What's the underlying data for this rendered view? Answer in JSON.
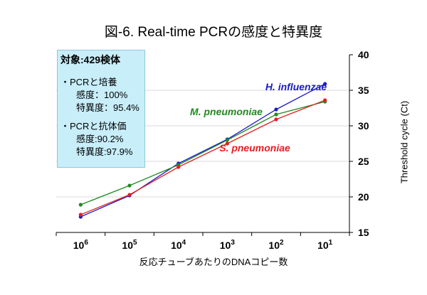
{
  "chart_data": {
    "type": "line",
    "title": "図-6. Real-time PCRの感度と特異度",
    "xlabel": "反応チューブあたりのDNAコピー数",
    "ylabel": "Threshold cycle (Ct)",
    "categories": [
      {
        "base": "10",
        "exp": "6"
      },
      {
        "base": "10",
        "exp": "5"
      },
      {
        "base": "10",
        "exp": "4"
      },
      {
        "base": "10",
        "exp": "3"
      },
      {
        "base": "10",
        "exp": "2"
      },
      {
        "base": "10",
        "exp": "1"
      }
    ],
    "ylim": [
      15,
      40
    ],
    "yticks": [
      15,
      20,
      25,
      30,
      35,
      40
    ],
    "grid": true,
    "series": [
      {
        "name": "H. influenzae",
        "color": "#1a1acc",
        "values": [
          17.2,
          20.2,
          24.7,
          28.1,
          32.3,
          35.9
        ]
      },
      {
        "name": "M. pneumoniae",
        "color": "#1f8a1f",
        "values": [
          18.9,
          21.6,
          24.5,
          28.0,
          31.6,
          33.4
        ]
      },
      {
        "name": "S. pneumoniae",
        "color": "#e02020",
        "values": [
          17.5,
          20.3,
          24.2,
          27.5,
          30.9,
          33.6
        ]
      }
    ],
    "annotation": {
      "header": "対象:429検体",
      "groups": [
        {
          "title": "・PCRと培養",
          "lines": [
            "感度：100%",
            "特異度：95.4%"
          ]
        },
        {
          "title": "・PCRと抗体価",
          "lines": [
            "感度:90.2%",
            "特異度:97.9%"
          ]
        }
      ]
    }
  }
}
